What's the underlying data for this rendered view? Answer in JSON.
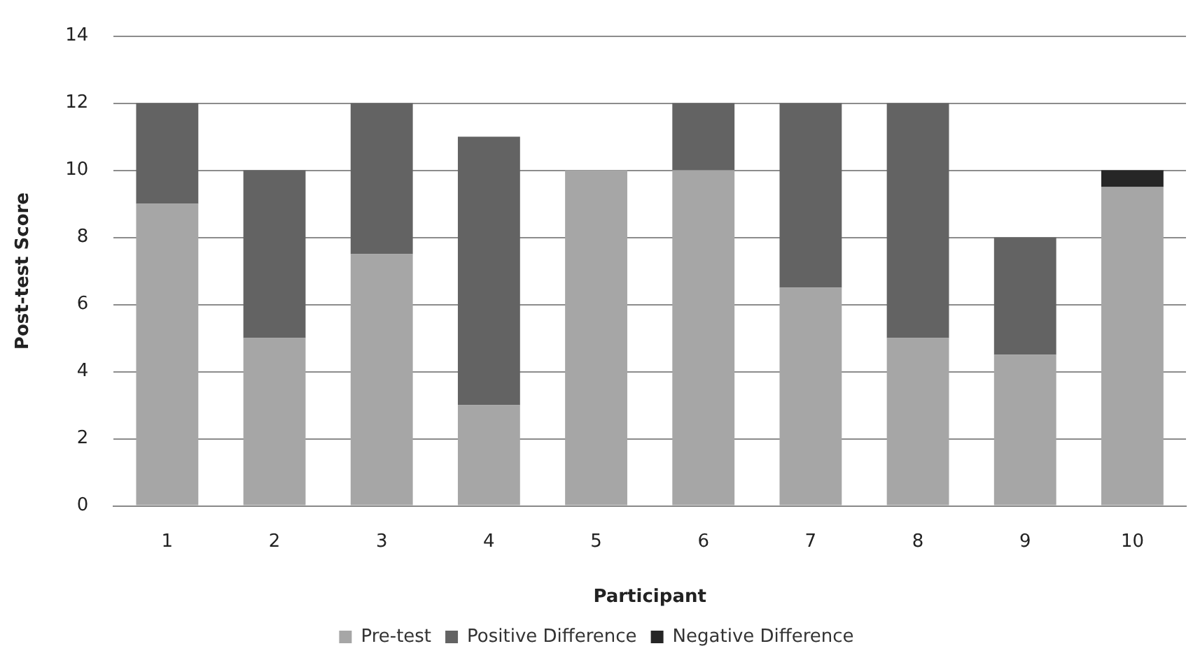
{
  "chart_data": {
    "type": "bar",
    "stacked": true,
    "xlabel": "Participant",
    "ylabel": "Post-test Score",
    "categories": [
      "1",
      "2",
      "3",
      "4",
      "5",
      "6",
      "7",
      "8",
      "9",
      "10"
    ],
    "series": [
      {
        "name": "Pre-test",
        "color": "#a6a6a6",
        "values": [
          9,
          5,
          7.5,
          3,
          10,
          10,
          6.5,
          5,
          4.5,
          9.5
        ]
      },
      {
        "name": "Positive Difference",
        "color": "#636363",
        "values": [
          3,
          5,
          4.5,
          8,
          0,
          2,
          5.5,
          7,
          3.5,
          0
        ]
      },
      {
        "name": "Negative Difference",
        "color": "#262626",
        "values": [
          0,
          0,
          0,
          0,
          0,
          0,
          0,
          0,
          0,
          0.5
        ]
      }
    ],
    "ylim": [
      0,
      14
    ],
    "yticks": [
      0,
      2,
      4,
      6,
      8,
      10,
      12,
      14
    ],
    "grid": "y",
    "legend": "bottom"
  }
}
